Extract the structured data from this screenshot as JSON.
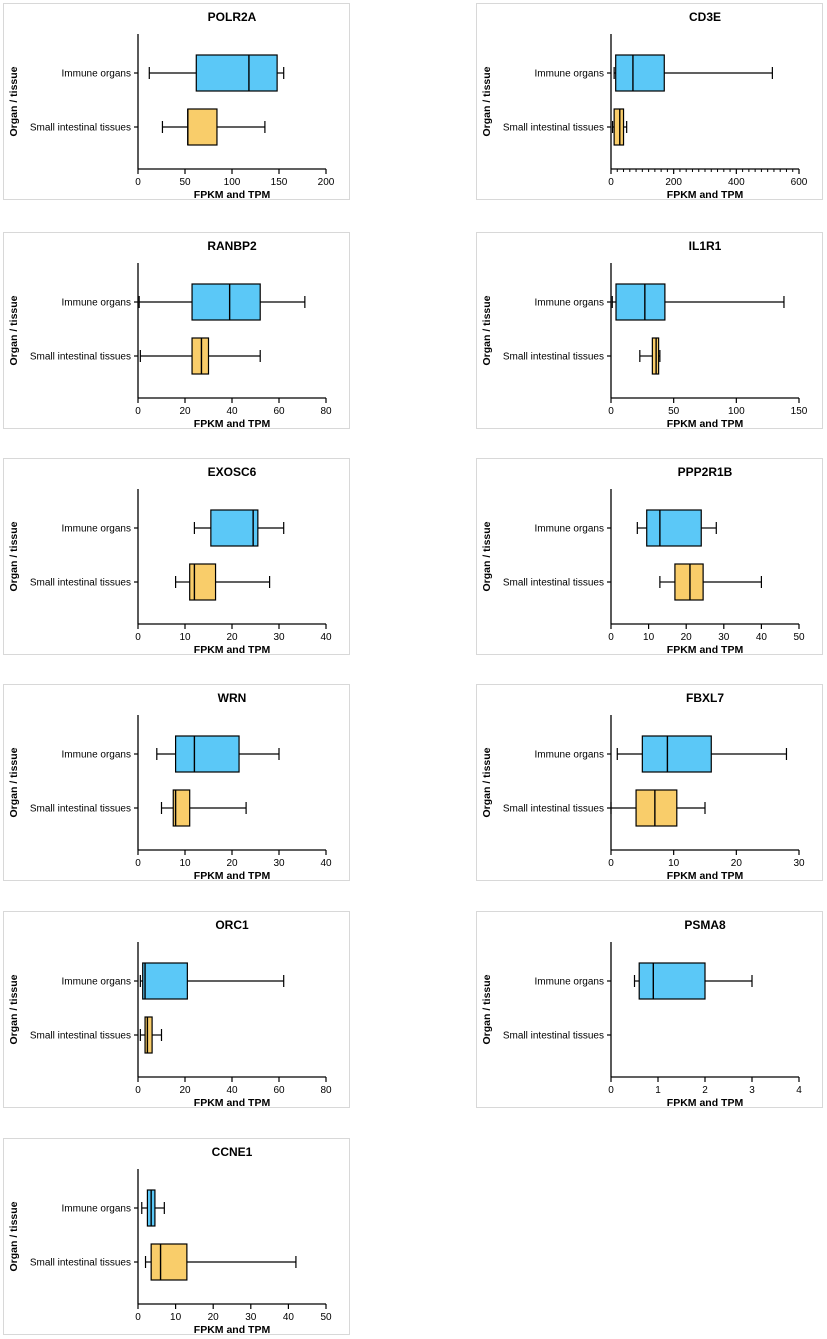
{
  "colors": {
    "immune": "#5bc8f7",
    "intestinal": "#f9cd6a",
    "stroke": "#000000",
    "frame": "#d8d8d8"
  },
  "chart_data": [
    {
      "type": "box",
      "title": "POLR2A",
      "xlabel": "FPKM and TPM",
      "ylabel": "Organ / tissue",
      "xlim": [
        0,
        200
      ],
      "xticks": [
        0,
        50,
        100,
        150,
        200
      ],
      "categories": [
        "Immune organs",
        "Small intestinal tissues"
      ],
      "boxes": [
        {
          "category": "Immune organs",
          "min": 12,
          "q1": 62,
          "median": 118,
          "q3": 148,
          "max": 155
        },
        {
          "category": "Small intestinal tissues",
          "min": 26,
          "q1": 53,
          "median": 53,
          "q3": 84,
          "max": 135
        }
      ]
    },
    {
      "type": "box",
      "title": "CD3E",
      "xlabel": "FPKM and TPM",
      "ylabel": "Organ / tissue",
      "xlim": [
        0,
        600
      ],
      "xticks": [
        0,
        200,
        400,
        600
      ],
      "categories": [
        "Immune organs",
        "Small intestinal tissues"
      ],
      "boxes": [
        {
          "category": "Immune organs",
          "min": 10,
          "q1": 15,
          "median": 70,
          "q3": 170,
          "max": 515
        },
        {
          "category": "Small intestinal tissues",
          "min": 5,
          "q1": 10,
          "median": 28,
          "q3": 40,
          "max": 50
        }
      ]
    },
    {
      "type": "box",
      "title": "RANBP2",
      "xlabel": "FPKM and TPM",
      "ylabel": "Organ / tissue",
      "xlim": [
        0,
        80
      ],
      "xticks": [
        0,
        20,
        40,
        60,
        80
      ],
      "categories": [
        "Immune organs",
        "Small intestinal tissues"
      ],
      "boxes": [
        {
          "category": "Immune organs",
          "min": 0.5,
          "q1": 23,
          "median": 39,
          "q3": 52,
          "max": 71
        },
        {
          "category": "Small intestinal tissues",
          "min": 1,
          "q1": 23,
          "median": 27,
          "q3": 30,
          "max": 52
        }
      ]
    },
    {
      "type": "box",
      "title": "IL1R1",
      "xlabel": "FPKM and TPM",
      "ylabel": "Organ / tissue",
      "xlim": [
        0,
        150
      ],
      "xticks": [
        0,
        50,
        100,
        150
      ],
      "categories": [
        "Immune organs",
        "Small intestinal tissues"
      ],
      "boxes": [
        {
          "category": "Immune organs",
          "min": 1,
          "q1": 4,
          "median": 27,
          "q3": 43,
          "max": 138
        },
        {
          "category": "Small intestinal tissues",
          "min": 23,
          "q1": 33,
          "median": 36,
          "q3": 38,
          "max": 39
        }
      ]
    },
    {
      "type": "box",
      "title": "EXOSC6",
      "xlabel": "FPKM and TPM",
      "ylabel": "Organ / tissue",
      "xlim": [
        0,
        40
      ],
      "xticks": [
        0,
        10,
        20,
        30,
        40
      ],
      "categories": [
        "Immune organs",
        "Small intestinal tissues"
      ],
      "boxes": [
        {
          "category": "Immune organs",
          "min": 12,
          "q1": 15.5,
          "median": 24.5,
          "q3": 25.5,
          "max": 31
        },
        {
          "category": "Small intestinal tissues",
          "min": 8,
          "q1": 11,
          "median": 12,
          "q3": 16.5,
          "max": 28
        }
      ]
    },
    {
      "type": "box",
      "title": "PPP2R1B",
      "xlabel": "FPKM and TPM",
      "ylabel": "Organ / tissue",
      "xlim": [
        0,
        50
      ],
      "xticks": [
        0,
        10,
        20,
        30,
        40,
        50
      ],
      "categories": [
        "Immune organs",
        "Small intestinal tissues"
      ],
      "boxes": [
        {
          "category": "Immune organs",
          "min": 7,
          "q1": 9.5,
          "median": 13,
          "q3": 24,
          "max": 28
        },
        {
          "category": "Small intestinal tissues",
          "min": 13,
          "q1": 17,
          "median": 21,
          "q3": 24.5,
          "max": 40
        }
      ]
    },
    {
      "type": "box",
      "title": "WRN",
      "xlabel": "FPKM and TPM",
      "ylabel": "Organ / tissue",
      "xlim": [
        0,
        40
      ],
      "xticks": [
        0,
        10,
        20,
        30,
        40
      ],
      "categories": [
        "Immune organs",
        "Small intestinal tissues"
      ],
      "boxes": [
        {
          "category": "Immune organs",
          "min": 4,
          "q1": 8,
          "median": 12,
          "q3": 21.5,
          "max": 30
        },
        {
          "category": "Small intestinal tissues",
          "min": 5,
          "q1": 7.5,
          "median": 8,
          "q3": 11,
          "max": 23
        }
      ]
    },
    {
      "type": "box",
      "title": "FBXL7",
      "xlabel": "FPKM and TPM",
      "ylabel": "Organ / tissue",
      "xlim": [
        0,
        30
      ],
      "xticks": [
        0,
        10,
        20,
        30
      ],
      "categories": [
        "Immune organs",
        "Small intestinal tissues"
      ],
      "boxes": [
        {
          "category": "Immune organs",
          "min": 1,
          "q1": 5,
          "median": 9,
          "q3": 16,
          "max": 28
        },
        {
          "category": "Small intestinal tissues",
          "min": 0,
          "q1": 4,
          "median": 7,
          "q3": 10.5,
          "max": 15
        }
      ]
    },
    {
      "type": "box",
      "title": "ORC1",
      "xlabel": "FPKM and TPM",
      "ylabel": "Organ / tissue",
      "xlim": [
        0,
        80
      ],
      "xticks": [
        0,
        20,
        40,
        60,
        80
      ],
      "categories": [
        "Immune organs",
        "Small intestinal tissues"
      ],
      "boxes": [
        {
          "category": "Immune organs",
          "min": 1,
          "q1": 2,
          "median": 3,
          "q3": 21,
          "max": 62
        },
        {
          "category": "Small intestinal tissues",
          "min": 1,
          "q1": 3,
          "median": 4,
          "q3": 6,
          "max": 10
        }
      ]
    },
    {
      "type": "box",
      "title": "PSMA8",
      "xlabel": "FPKM and TPM",
      "ylabel": "Organ / tissue",
      "xlim": [
        0,
        4
      ],
      "xticks": [
        0,
        1,
        2,
        3,
        4
      ],
      "categories": [
        "Immune organs",
        "Small intestinal tissues"
      ],
      "boxes": [
        {
          "category": "Immune organs",
          "min": 0.5,
          "q1": 0.6,
          "median": 0.9,
          "q3": 2,
          "max": 3
        }
      ]
    },
    {
      "type": "box",
      "title": "CCNE1",
      "xlabel": "FPKM and TPM",
      "ylabel": "Organ / tissue",
      "xlim": [
        0,
        50
      ],
      "xticks": [
        0,
        10,
        20,
        30,
        40,
        50
      ],
      "categories": [
        "Immune organs",
        "Small intestinal tissues"
      ],
      "boxes": [
        {
          "category": "Immune organs",
          "min": 1,
          "q1": 2.5,
          "median": 3.5,
          "q3": 4.5,
          "max": 7
        },
        {
          "category": "Small intestinal tissues",
          "min": 2,
          "q1": 3.5,
          "median": 6,
          "q3": 13,
          "max": 42
        }
      ]
    }
  ]
}
